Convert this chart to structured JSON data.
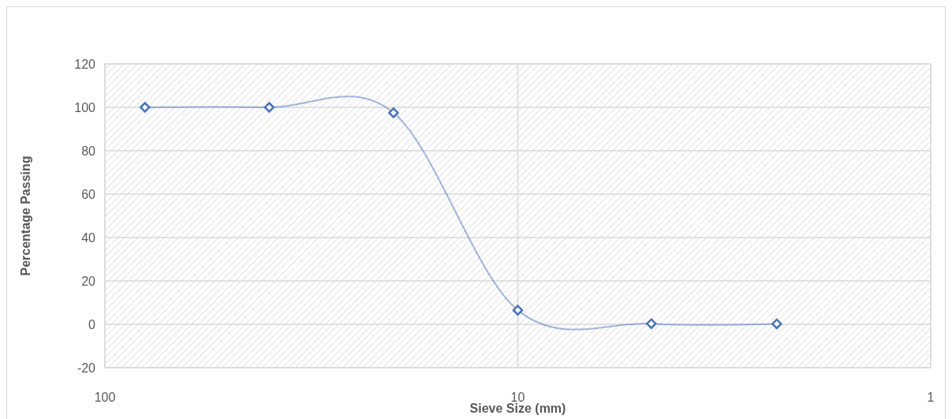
{
  "chart_data": {
    "type": "line",
    "xlabel": "Sieve Size (mm)",
    "ylabel": "Percentage Passing",
    "x": [
      80,
      40,
      20,
      10,
      4.75,
      2.36
    ],
    "series": [
      {
        "color": "#4472c4",
        "values": [
          100,
          100,
          97.5,
          6.5,
          0.3,
          0.2
        ]
      }
    ],
    "log": "x",
    "xlim": [
      100,
      1
    ],
    "xticks": [
      100,
      10,
      1
    ],
    "ylim": [
      -20,
      120
    ],
    "yticks": [
      -20,
      0,
      20,
      40,
      60,
      80,
      100,
      120
    ],
    "grid": true,
    "marker": "diamond",
    "line_style": "solid"
  }
}
